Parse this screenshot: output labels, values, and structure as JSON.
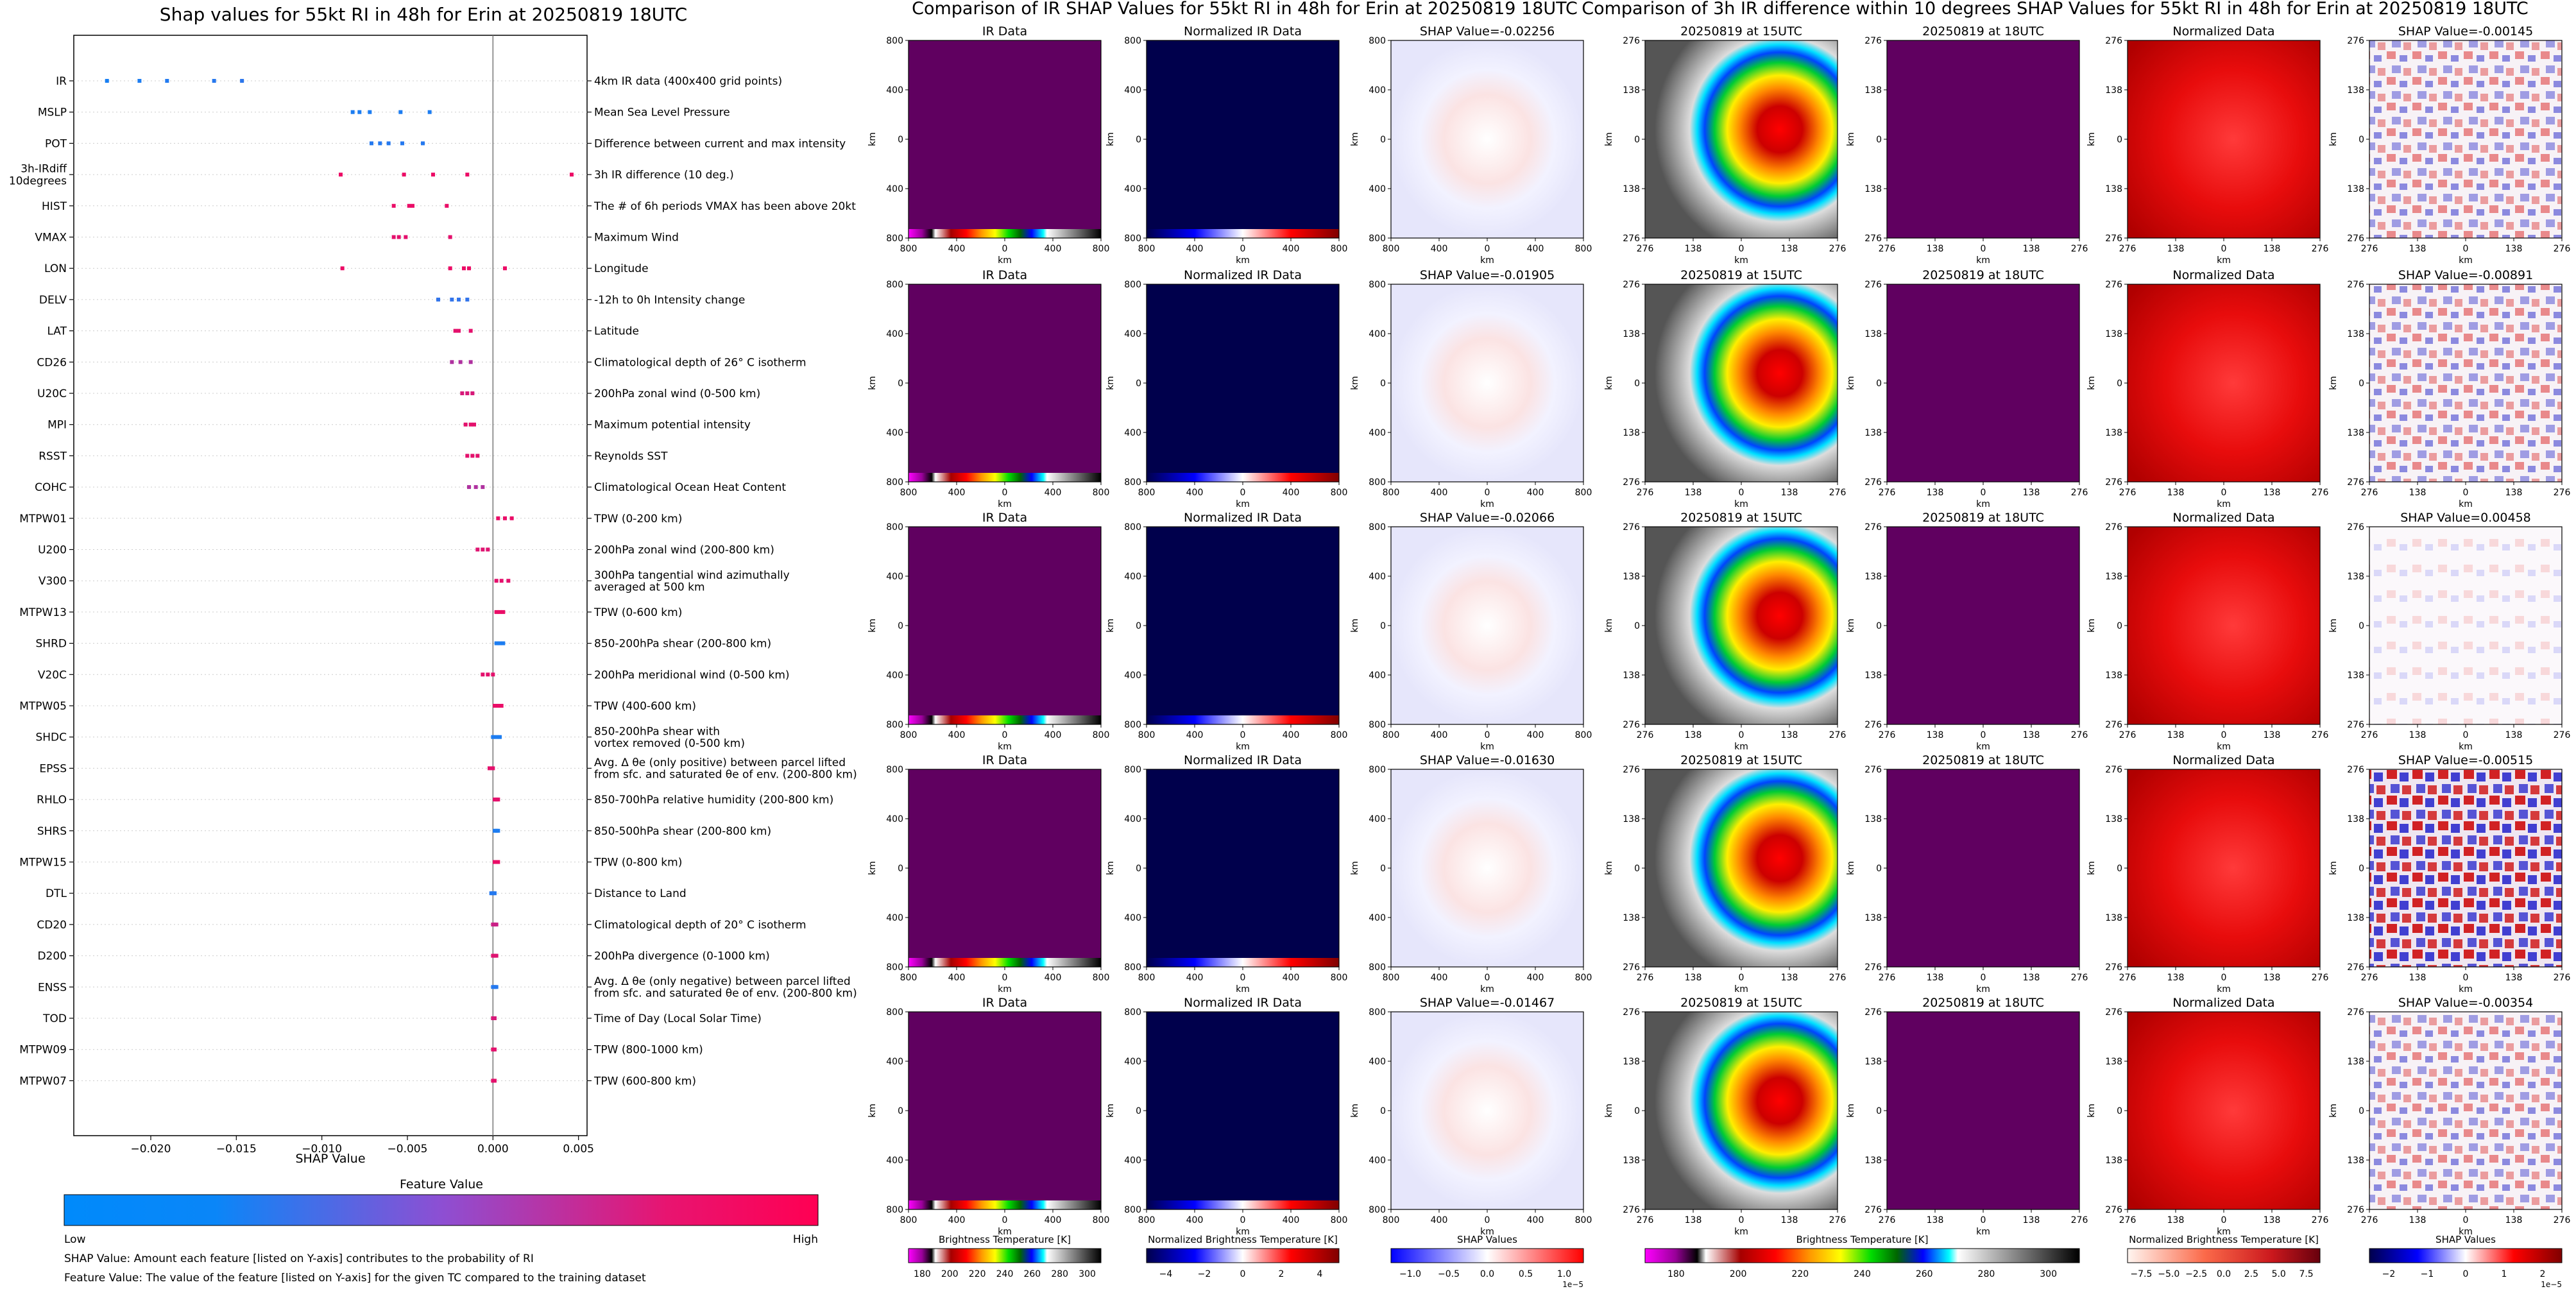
{
  "shap_panel": {
    "title": "Shap values for 55kt RI in 48h for Erin at 20250819 18UTC",
    "xlabel": "SHAP Value",
    "colorbar_title": "Feature Value",
    "colorbar_low": "Low",
    "colorbar_high": "High",
    "note_shap": "SHAP Value: Amount each feature [listed on Y-axis] contributes to the probability of RI",
    "note_feature": "Feature Value: The value of the feature [listed on Y-axis] for the given TC compared to the training dataset"
  },
  "ir_panel": {
    "title": "Comparison of IR SHAP Values for 55kt RI in 48h for Erin at 20250819 18UTC",
    "col_titles": [
      "IR Data",
      "Normalized IR Data"
    ],
    "shap_titles": [
      "SHAP Value=-0.02256",
      "SHAP Value=-0.01905",
      "SHAP Value=-0.02066",
      "SHAP Value=-0.01630",
      "SHAP Value=-0.01467"
    ],
    "axis_unit": "km",
    "y_ticks": [
      "800",
      "400",
      "0",
      "400",
      "800"
    ],
    "x_ticks": [
      "800",
      "400",
      "0",
      "400",
      "800"
    ],
    "colorbars": [
      {
        "label": "Brightness Temperature [K]",
        "ticks": [
          "180",
          "200",
          "220",
          "240",
          "260",
          "280",
          "300"
        ]
      },
      {
        "label": "Normalized Brightness Temperature [K]",
        "ticks": [
          "−4",
          "−2",
          "0",
          "2",
          "4"
        ]
      },
      {
        "label": "SHAP Values",
        "ticks": [
          "−1.0",
          "−0.5",
          "0.0",
          "0.5",
          "1.0"
        ],
        "exponent": "1e−5"
      }
    ]
  },
  "diff_panel": {
    "title": "Comparison of 3h IR difference within 10 degrees SHAP Values for 55kt RI in 48h for Erin at 20250819 18UTC",
    "col_titles": [
      "20250819 at 15UTC",
      "20250819 at 18UTC",
      "Normalized Data"
    ],
    "shap_titles": [
      "SHAP Value=-0.00145",
      "SHAP Value=-0.00891",
      "SHAP Value=0.00458",
      "SHAP Value=-0.00515",
      "SHAP Value=-0.00354"
    ],
    "axis_unit": "km",
    "y_ticks": [
      "276",
      "138",
      "0",
      "138",
      "276"
    ],
    "x_ticks": [
      "276",
      "138",
      "0",
      "138",
      "276"
    ],
    "colorbars": [
      {
        "label": "Brightness Temperature [K]",
        "ticks": [
          "180",
          "200",
          "220",
          "240",
          "260",
          "280",
          "300"
        ]
      },
      {
        "label": "Normalized Brightness Temperature [K]",
        "ticks": [
          "−7.5",
          "−5.0",
          "−2.5",
          "0.0",
          "2.5",
          "5.0",
          "7.5"
        ]
      },
      {
        "label": "SHAP Values",
        "ticks": [
          "−2",
          "−1",
          "0",
          "1",
          "2"
        ],
        "exponent": "1e−5"
      }
    ]
  },
  "chart_data": {
    "type": "scatter",
    "title": "Shap values for 55kt RI in 48h for Erin at 20250819 18UTC",
    "xlabel": "SHAP Value",
    "xlim": [
      -0.0245,
      0.0055
    ],
    "x_ticks": [
      "−0.020",
      "−0.015",
      "−0.010",
      "−0.005",
      "0.000",
      "0.005"
    ],
    "x_tick_values": [
      -0.02,
      -0.015,
      -0.01,
      -0.005,
      0.0,
      0.005
    ],
    "colormap": [
      "#008afb",
      "#7a52d2",
      "#ff0053"
    ],
    "features": [
      {
        "name": "IR",
        "desc": "4km IR data (400x400 grid points)",
        "values": [
          -0.02256,
          -0.02066,
          -0.01905,
          -0.0163,
          -0.01467
        ],
        "fv": [
          0.1,
          0.12,
          0.14,
          0.16,
          0.18
        ]
      },
      {
        "name": "MSLP",
        "desc": "Mean Sea Level Pressure",
        "values": [
          -0.0082,
          -0.0078,
          -0.0072,
          -0.0054,
          -0.0037
        ],
        "fv": [
          0.12,
          0.12,
          0.12,
          0.12,
          0.12
        ]
      },
      {
        "name": "POT",
        "desc": "Difference between current and max intensity",
        "values": [
          -0.0071,
          -0.0066,
          -0.0061,
          -0.0053,
          -0.0041
        ],
        "fv": [
          0.15,
          0.15,
          0.15,
          0.15,
          0.15
        ]
      },
      {
        "name": "3h-IRdiff\n10degrees",
        "desc": "3h IR difference (10 deg.)",
        "values": [
          -0.0089,
          -0.0052,
          -0.0035,
          -0.0015,
          0.0046
        ],
        "fv": [
          0.93,
          0.93,
          0.93,
          0.93,
          0.93
        ]
      },
      {
        "name": "HIST",
        "desc": "The # of 6h periods VMAX has been above 20kt",
        "values": [
          -0.0058,
          -0.0049,
          -0.0047,
          -0.0027
        ],
        "fv": [
          0.92,
          0.92,
          0.92,
          0.92
        ]
      },
      {
        "name": "VMAX",
        "desc": "Maximum Wind",
        "values": [
          -0.0058,
          -0.0055,
          -0.0051,
          -0.0025
        ],
        "fv": [
          0.9,
          0.9,
          0.9,
          0.9
        ]
      },
      {
        "name": "LON",
        "desc": "Longitude",
        "values": [
          -0.0088,
          -0.0025,
          -0.0017,
          -0.0014,
          0.0007
        ],
        "fv": [
          0.93,
          0.93,
          0.93,
          0.93,
          0.93
        ]
      },
      {
        "name": "DELV",
        "desc": "-12h to 0h Intensity change",
        "values": [
          -0.0032,
          -0.0024,
          -0.002,
          -0.0015
        ],
        "fv": [
          0.2,
          0.2,
          0.2,
          0.2
        ]
      },
      {
        "name": "LAT",
        "desc": "Latitude",
        "values": [
          -0.0022,
          -0.002,
          -0.0013
        ],
        "fv": [
          0.9,
          0.9,
          0.9
        ]
      },
      {
        "name": "CD26",
        "desc": "Climatological depth of 26° C isotherm",
        "values": [
          -0.0024,
          -0.0019,
          -0.0013
        ],
        "fv": [
          0.7,
          0.7,
          0.7
        ]
      },
      {
        "name": "U20C",
        "desc": "200hPa zonal wind (0-500 km)",
        "values": [
          -0.0018,
          -0.0015,
          -0.0012
        ],
        "fv": [
          0.85,
          0.85,
          0.85
        ]
      },
      {
        "name": "MPI",
        "desc": "Maximum potential intensity",
        "values": [
          -0.0016,
          -0.0013,
          -0.0011
        ],
        "fv": [
          0.9,
          0.9,
          0.9
        ]
      },
      {
        "name": "RSST",
        "desc": "Reynolds SST",
        "values": [
          -0.0015,
          -0.0012,
          -0.0009
        ],
        "fv": [
          0.9,
          0.9,
          0.9
        ]
      },
      {
        "name": "COHC",
        "desc": "Climatological Ocean Heat Content",
        "values": [
          -0.0014,
          -0.001,
          -0.0006
        ],
        "fv": [
          0.7,
          0.7,
          0.7
        ]
      },
      {
        "name": "MTPW01",
        "desc": "TPW (0-200 km)",
        "values": [
          0.0003,
          0.0007,
          0.0011
        ],
        "fv": [
          0.92,
          0.92,
          0.92
        ]
      },
      {
        "name": "U200",
        "desc": "200hPa zonal wind (200-800 km)",
        "values": [
          -0.0009,
          -0.0006,
          -0.0003
        ],
        "fv": [
          0.88,
          0.88,
          0.88
        ]
      },
      {
        "name": "V300",
        "desc": "300hPa tangential wind azimuthally\naveraged at 500 km",
        "values": [
          0.0002,
          0.0005,
          0.0009
        ],
        "fv": [
          0.9,
          0.9,
          0.9
        ]
      },
      {
        "name": "MTPW13",
        "desc": "TPW (0-600 km)",
        "values": [
          0.0002,
          0.0004,
          0.0006
        ],
        "fv": [
          0.92,
          0.92,
          0.92
        ]
      },
      {
        "name": "SHRD",
        "desc": "850-200hPa shear (200-800 km)",
        "values": [
          0.0002,
          0.0004,
          0.0006
        ],
        "fv": [
          0.12,
          0.12,
          0.12
        ]
      },
      {
        "name": "V20C",
        "desc": "200hPa meridional wind (0-500 km)",
        "values": [
          -0.0006,
          -0.0003,
          0.0
        ],
        "fv": [
          0.9,
          0.9,
          0.9
        ]
      },
      {
        "name": "MTPW05",
        "desc": "TPW (400-600 km)",
        "values": [
          0.0001,
          0.0003,
          0.0005
        ],
        "fv": [
          0.92,
          0.92,
          0.92
        ]
      },
      {
        "name": "SHDC",
        "desc": "850-200hPa shear with\nvortex removed (0-500 km)",
        "values": [
          0.0,
          0.0002,
          0.0004
        ],
        "fv": [
          0.12,
          0.12,
          0.12
        ]
      },
      {
        "name": "EPSS",
        "desc": "Avg. Δ θe (only positive) between parcel lifted\nfrom sfc. and saturated θe of env. (200-800 km)",
        "values": [
          -0.0002,
          0.0
        ],
        "fv": [
          0.9,
          0.9
        ]
      },
      {
        "name": "RHLO",
        "desc": "850-700hPa relative humidity (200-800 km)",
        "values": [
          0.0001,
          0.0002,
          0.0003
        ],
        "fv": [
          0.9,
          0.9,
          0.9
        ]
      },
      {
        "name": "SHRS",
        "desc": "850-500hPa shear (200-800 km)",
        "values": [
          0.0001,
          0.0002,
          0.0003
        ],
        "fv": [
          0.12,
          0.12,
          0.12
        ]
      },
      {
        "name": "MTPW15",
        "desc": "TPW (0-800 km)",
        "values": [
          0.0001,
          0.0002,
          0.0003
        ],
        "fv": [
          0.92,
          0.92,
          0.92
        ]
      },
      {
        "name": "DTL",
        "desc": "Distance to Land",
        "values": [
          -0.0001,
          0.0,
          0.0001
        ],
        "fv": [
          0.15,
          0.15,
          0.15
        ]
      },
      {
        "name": "CD20",
        "desc": "Climatological depth of 20° C isotherm",
        "values": [
          0.0,
          0.0001,
          0.0002
        ],
        "fv": [
          0.8,
          0.8,
          0.8
        ]
      },
      {
        "name": "D200",
        "desc": "200hPa divergence (0-1000 km)",
        "values": [
          0.0,
          0.0001,
          0.0002
        ],
        "fv": [
          0.88,
          0.88,
          0.88
        ]
      },
      {
        "name": "ENSS",
        "desc": "Avg. Δ θe (only negative) between parcel lifted\nfrom sfc. and saturated θe of env. (200-800 km)",
        "values": [
          0.0,
          0.0001,
          0.0002
        ],
        "fv": [
          0.15,
          0.15,
          0.15
        ]
      },
      {
        "name": "TOD",
        "desc": "Time of Day (Local Solar Time)",
        "values": [
          0.0,
          0.0001
        ],
        "fv": [
          0.85,
          0.85
        ]
      },
      {
        "name": "MTPW09",
        "desc": "TPW (800-1000 km)",
        "values": [
          0.0,
          0.0001
        ],
        "fv": [
          0.9,
          0.9
        ]
      },
      {
        "name": "MTPW07",
        "desc": "TPW (600-800 km)",
        "values": [
          0.0,
          0.0001
        ],
        "fv": [
          0.9,
          0.9
        ]
      }
    ]
  }
}
